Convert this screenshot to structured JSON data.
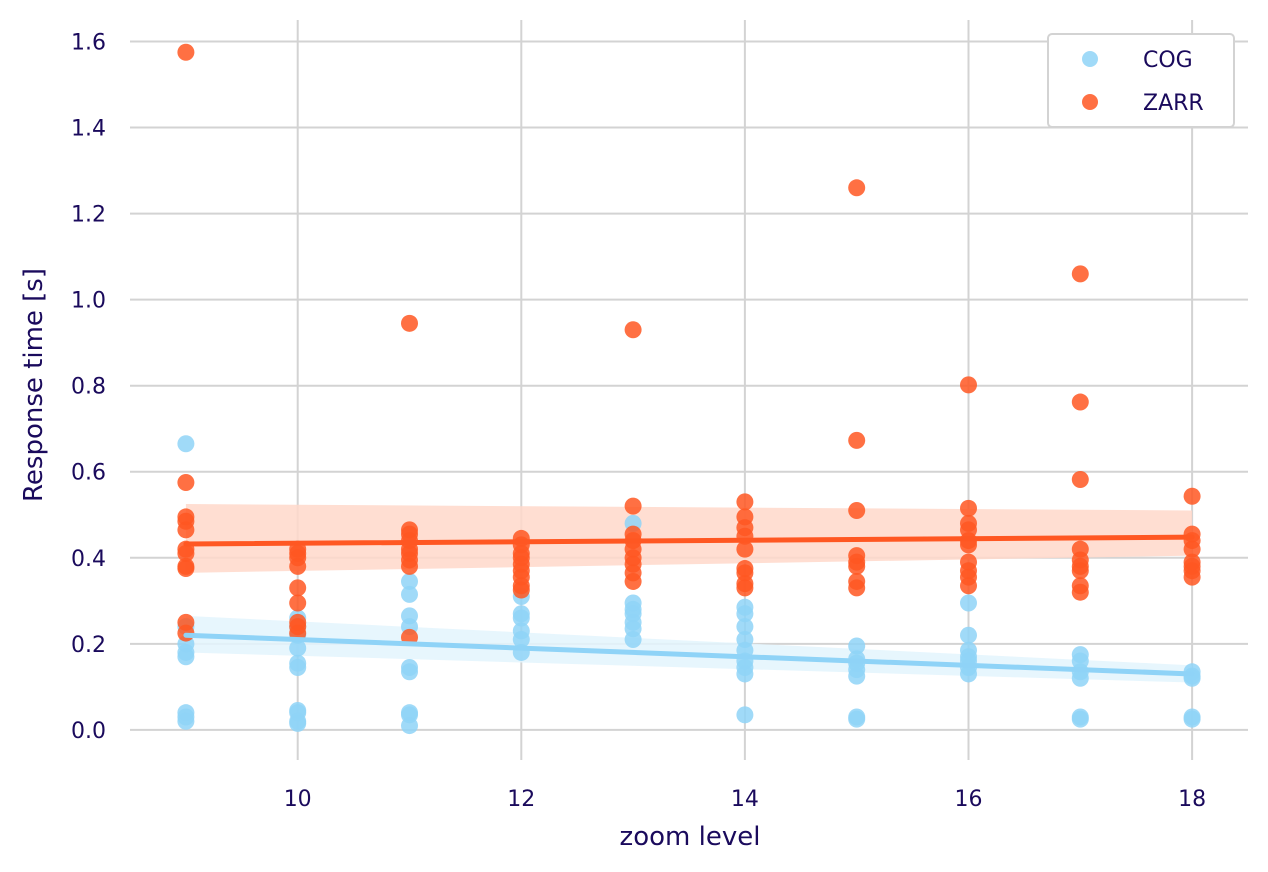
{
  "chart_data": {
    "type": "scatter",
    "xlabel": "zoom level",
    "ylabel": "Response time [s]",
    "xlim": [
      8.5,
      18.5
    ],
    "ylim": [
      -0.07,
      1.65
    ],
    "x_ticks": [
      10,
      12,
      14,
      16,
      18
    ],
    "y_ticks": [
      0.0,
      0.2,
      0.4,
      0.6,
      0.8,
      1.0,
      1.2,
      1.4,
      1.6
    ],
    "x_tick_labels": [
      "10",
      "12",
      "14",
      "16",
      "18"
    ],
    "y_tick_labels": [
      "0.0",
      "0.2",
      "0.4",
      "0.6",
      "0.8",
      "1.0",
      "1.2",
      "1.4",
      "1.6"
    ],
    "grid": true,
    "legend_position": "top-right",
    "series": [
      {
        "name": "COG",
        "color": "#8fd3f7",
        "band_color": "#e3f4fd",
        "points": [
          [
            9,
            0.665
          ],
          [
            9,
            0.24
          ],
          [
            9,
            0.2
          ],
          [
            9,
            0.18
          ],
          [
            9,
            0.17
          ],
          [
            9,
            0.04
          ],
          [
            9,
            0.03
          ],
          [
            9,
            0.02
          ],
          [
            10,
            0.26
          ],
          [
            10,
            0.24
          ],
          [
            10,
            0.22
          ],
          [
            10,
            0.19
          ],
          [
            10,
            0.155
          ],
          [
            10,
            0.145
          ],
          [
            10,
            0.045
          ],
          [
            10,
            0.04
          ],
          [
            10,
            0.02
          ],
          [
            10,
            0.015
          ],
          [
            11,
            0.345
          ],
          [
            11,
            0.315
          ],
          [
            11,
            0.265
          ],
          [
            11,
            0.24
          ],
          [
            11,
            0.145
          ],
          [
            11,
            0.135
          ],
          [
            11,
            0.04
          ],
          [
            11,
            0.035
          ],
          [
            11,
            0.01
          ],
          [
            12,
            0.31
          ],
          [
            12,
            0.27
          ],
          [
            12,
            0.26
          ],
          [
            12,
            0.23
          ],
          [
            12,
            0.21
          ],
          [
            12,
            0.18
          ],
          [
            13,
            0.48
          ],
          [
            13,
            0.295
          ],
          [
            13,
            0.28
          ],
          [
            13,
            0.27
          ],
          [
            13,
            0.25
          ],
          [
            13,
            0.235
          ],
          [
            13,
            0.21
          ],
          [
            14,
            0.285
          ],
          [
            14,
            0.27
          ],
          [
            14,
            0.24
          ],
          [
            14,
            0.21
          ],
          [
            14,
            0.185
          ],
          [
            14,
            0.16
          ],
          [
            14,
            0.145
          ],
          [
            14,
            0.13
          ],
          [
            14,
            0.035
          ],
          [
            15,
            0.195
          ],
          [
            15,
            0.165
          ],
          [
            15,
            0.155
          ],
          [
            15,
            0.14
          ],
          [
            15,
            0.125
          ],
          [
            15,
            0.03
          ],
          [
            15,
            0.025
          ],
          [
            16,
            0.295
          ],
          [
            16,
            0.22
          ],
          [
            16,
            0.185
          ],
          [
            16,
            0.17
          ],
          [
            16,
            0.16
          ],
          [
            16,
            0.145
          ],
          [
            16,
            0.13
          ],
          [
            17,
            0.175
          ],
          [
            17,
            0.16
          ],
          [
            17,
            0.135
          ],
          [
            17,
            0.12
          ],
          [
            17,
            0.03
          ],
          [
            17,
            0.025
          ],
          [
            18,
            0.135
          ],
          [
            18,
            0.125
          ],
          [
            18,
            0.12
          ],
          [
            18,
            0.03
          ],
          [
            18,
            0.025
          ]
        ],
        "fit": {
          "x": [
            9,
            18
          ],
          "y": [
            0.22,
            0.13
          ]
        },
        "band": {
          "x": [
            9,
            18
          ],
          "lower": [
            0.18,
            0.11
          ],
          "upper": [
            0.265,
            0.15
          ]
        }
      },
      {
        "name": "ZARR",
        "color": "#ff5722",
        "band_color": "#ffd8ca",
        "points": [
          [
            9,
            1.575
          ],
          [
            9,
            0.575
          ],
          [
            9,
            0.495
          ],
          [
            9,
            0.485
          ],
          [
            9,
            0.465
          ],
          [
            9,
            0.42
          ],
          [
            9,
            0.41
          ],
          [
            9,
            0.38
          ],
          [
            9,
            0.375
          ],
          [
            9,
            0.25
          ],
          [
            9,
            0.225
          ],
          [
            10,
            0.42
          ],
          [
            10,
            0.41
          ],
          [
            10,
            0.4
          ],
          [
            10,
            0.38
          ],
          [
            10,
            0.33
          ],
          [
            10,
            0.295
          ],
          [
            10,
            0.25
          ],
          [
            10,
            0.24
          ],
          [
            10,
            0.225
          ],
          [
            11,
            0.945
          ],
          [
            11,
            0.465
          ],
          [
            11,
            0.455
          ],
          [
            11,
            0.44
          ],
          [
            11,
            0.42
          ],
          [
            11,
            0.41
          ],
          [
            11,
            0.395
          ],
          [
            11,
            0.38
          ],
          [
            11,
            0.215
          ],
          [
            12,
            0.445
          ],
          [
            12,
            0.43
          ],
          [
            12,
            0.41
          ],
          [
            12,
            0.4
          ],
          [
            12,
            0.385
          ],
          [
            12,
            0.37
          ],
          [
            12,
            0.355
          ],
          [
            12,
            0.335
          ],
          [
            12,
            0.325
          ],
          [
            13,
            0.93
          ],
          [
            13,
            0.52
          ],
          [
            13,
            0.455
          ],
          [
            13,
            0.44
          ],
          [
            13,
            0.42
          ],
          [
            13,
            0.4
          ],
          [
            13,
            0.385
          ],
          [
            13,
            0.365
          ],
          [
            13,
            0.345
          ],
          [
            14,
            0.53
          ],
          [
            14,
            0.495
          ],
          [
            14,
            0.47
          ],
          [
            14,
            0.45
          ],
          [
            14,
            0.42
          ],
          [
            14,
            0.375
          ],
          [
            14,
            0.365
          ],
          [
            14,
            0.34
          ],
          [
            14,
            0.33
          ],
          [
            15,
            1.26
          ],
          [
            15,
            0.673
          ],
          [
            15,
            0.51
          ],
          [
            15,
            0.405
          ],
          [
            15,
            0.39
          ],
          [
            15,
            0.38
          ],
          [
            15,
            0.345
          ],
          [
            15,
            0.33
          ],
          [
            16,
            0.802
          ],
          [
            16,
            0.515
          ],
          [
            16,
            0.48
          ],
          [
            16,
            0.465
          ],
          [
            16,
            0.44
          ],
          [
            16,
            0.43
          ],
          [
            16,
            0.39
          ],
          [
            16,
            0.37
          ],
          [
            16,
            0.355
          ],
          [
            16,
            0.335
          ],
          [
            17,
            1.06
          ],
          [
            17,
            0.762
          ],
          [
            17,
            0.582
          ],
          [
            17,
            0.42
          ],
          [
            17,
            0.395
          ],
          [
            17,
            0.38
          ],
          [
            17,
            0.37
          ],
          [
            17,
            0.335
          ],
          [
            17,
            0.32
          ],
          [
            18,
            0.543
          ],
          [
            18,
            0.455
          ],
          [
            18,
            0.44
          ],
          [
            18,
            0.42
          ],
          [
            18,
            0.39
          ],
          [
            18,
            0.38
          ],
          [
            18,
            0.37
          ],
          [
            18,
            0.355
          ]
        ],
        "fit": {
          "x": [
            9,
            18
          ],
          "y": [
            0.432,
            0.448
          ]
        },
        "band": {
          "x": [
            9,
            18
          ],
          "lower": [
            0.365,
            0.405
          ],
          "upper": [
            0.525,
            0.51
          ]
        }
      }
    ]
  }
}
